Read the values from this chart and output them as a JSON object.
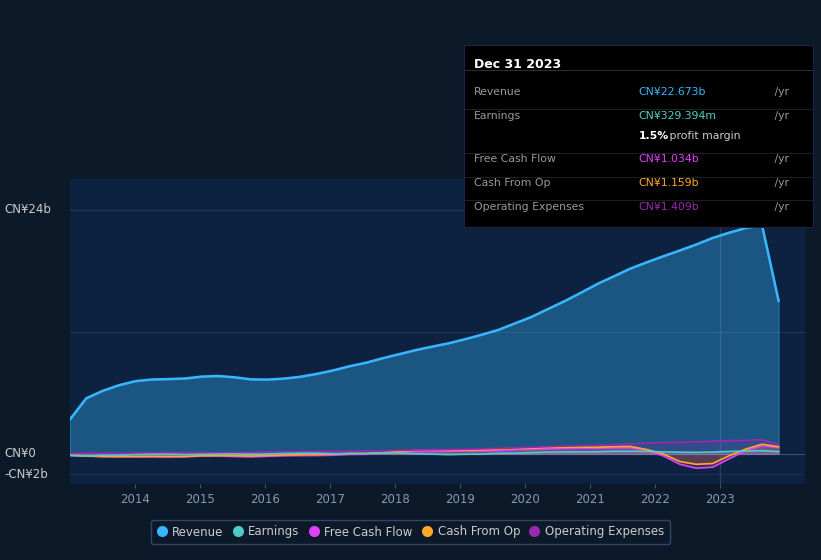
{
  "background_color": "#0c1929",
  "plot_bg_color": "#0d2240",
  "y_label_top": "CN¥24b",
  "y_label_zero": "CN¥0",
  "y_label_neg": "-CN¥2b",
  "legend": [
    {
      "label": "Revenue",
      "color": "#38b6ff"
    },
    {
      "label": "Earnings",
      "color": "#4ecdc4"
    },
    {
      "label": "Free Cash Flow",
      "color": "#e040fb"
    },
    {
      "label": "Cash From Op",
      "color": "#ffa726"
    },
    {
      "label": "Operating Expenses",
      "color": "#9c27b0"
    }
  ],
  "infobox": {
    "title": "Dec 31 2023",
    "rows": [
      {
        "label": "Revenue",
        "value": "CN¥22.673b",
        "suffix": " /yr",
        "color": "#38b6ff"
      },
      {
        "label": "Earnings",
        "value": "CN¥329.394m",
        "suffix": " /yr",
        "color": "#4ecdc4"
      },
      {
        "label": "",
        "value": "1.5%",
        "suffix": " profit margin",
        "color": "#cccccc"
      },
      {
        "label": "Free Cash Flow",
        "value": "CN¥1.034b",
        "suffix": " /yr",
        "color": "#e040fb"
      },
      {
        "label": "Cash From Op",
        "value": "CN¥1.159b",
        "suffix": " /yr",
        "color": "#ffa726"
      },
      {
        "label": "Operating Expenses",
        "value": "CN¥1.409b",
        "suffix": " /yr",
        "color": "#9c27b0"
      }
    ]
  },
  "ylim_main": [
    -3000000000.0,
    27000000000.0
  ],
  "ylim_detail": [
    -3000000000.0,
    27000000000.0
  ],
  "gridlines_main": [
    12000000000.0,
    24000000000.0
  ],
  "vline_x": 2023.0
}
